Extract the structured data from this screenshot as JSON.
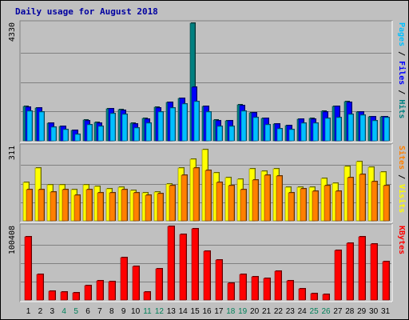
{
  "chart_data": {
    "type": "bar",
    "title": "Daily usage for August 2018",
    "categories": [
      "1",
      "2",
      "3",
      "4",
      "5",
      "6",
      "7",
      "8",
      "9",
      "10",
      "11",
      "12",
      "13",
      "14",
      "15",
      "16",
      "17",
      "18",
      "19",
      "20",
      "21",
      "22",
      "23",
      "24",
      "25",
      "26",
      "27",
      "28",
      "29",
      "30",
      "31"
    ],
    "weekend_days": [
      "4",
      "5",
      "11",
      "12",
      "18",
      "19",
      "25",
      "26"
    ],
    "panels": [
      {
        "axis_max_label": "4330",
        "ymax": 4330,
        "right_label_parts": [
          {
            "text": "Pages",
            "color": "#00c0ff"
          },
          {
            "text": " / ",
            "color": "#000000"
          },
          {
            "text": "Files",
            "color": "#0000ff"
          },
          {
            "text": " / ",
            "color": "#000000"
          },
          {
            "text": "Hits",
            "color": "#008080"
          }
        ],
        "series": [
          {
            "name": "Hits",
            "color": "#008080",
            "values": [
              1260,
              1220,
              660,
              530,
              380,
              760,
              680,
              1180,
              1140,
              640,
              820,
              1230,
              1420,
              1570,
              4330,
              1280,
              760,
              740,
              1320,
              1040,
              830,
              620,
              570,
              800,
              830,
              1080,
              1270,
              1440,
              1070,
              890,
              880
            ]
          },
          {
            "name": "Files",
            "color": "#0000ff",
            "values": [
              1250,
              1200,
              650,
              520,
              370,
              750,
              660,
              1170,
              1130,
              620,
              800,
              1210,
              1410,
              1560,
              1960,
              1270,
              740,
              730,
              1300,
              1020,
              820,
              610,
              560,
              790,
              810,
              1070,
              1260,
              1420,
              1050,
              880,
              870
            ]
          },
          {
            "name": "Pages",
            "color": "#00c0ff",
            "values": [
              1080,
              1050,
              510,
              400,
              230,
              590,
              520,
              1010,
              980,
              480,
              660,
              1070,
              1210,
              1350,
              1440,
              1060,
              520,
              520,
              1080,
              860,
              600,
              440,
              410,
              650,
              650,
              830,
              860,
              970,
              940,
              730,
              840
            ]
          }
        ]
      },
      {
        "axis_max_label": "311",
        "ymax": 311,
        "right_label_parts": [
          {
            "text": "Sites",
            "color": "#ff8000"
          },
          {
            "text": " / ",
            "color": "#000000"
          },
          {
            "text": "Visits",
            "color": "#ffff00"
          }
        ],
        "series": [
          {
            "name": "Visits",
            "color": "#ffff00",
            "values": [
              160,
              220,
              152,
              150,
              130,
              152,
              145,
              135,
              140,
              128,
              118,
              122,
              154,
              222,
              258,
              296,
              202,
              180,
              175,
              219,
              209,
              217,
              142,
              140,
              139,
              176,
              158,
              228,
              247,
              223,
              205
            ]
          },
          {
            "name": "Sites",
            "color": "#ff8000",
            "values": [
              130,
              132,
              122,
              132,
              106,
              132,
              116,
              118,
              130,
              116,
              108,
              114,
              148,
              190,
              220,
              211,
              162,
              146,
              132,
              169,
              189,
              187,
              116,
              133,
              123,
              148,
              123,
              180,
              194,
              164,
              147
            ]
          }
        ]
      },
      {
        "axis_max_label": "100408",
        "ymax": 100408,
        "right_label_parts": [
          {
            "text": "KBytes",
            "color": "#ff0000"
          }
        ],
        "series": [
          {
            "name": "KBytes",
            "color": "#ff0000",
            "values": [
              86000,
              35000,
              12000,
              11000,
              10000,
              20000,
              26000,
              25000,
              58000,
              46000,
              11000,
              43000,
              100408,
              90000,
              97000,
              67000,
              55000,
              23000,
              35000,
              32000,
              30000,
              39000,
              26000,
              15000,
              9000,
              8000,
              68000,
              78000,
              86000,
              76000,
              52000
            ]
          }
        ]
      }
    ]
  }
}
